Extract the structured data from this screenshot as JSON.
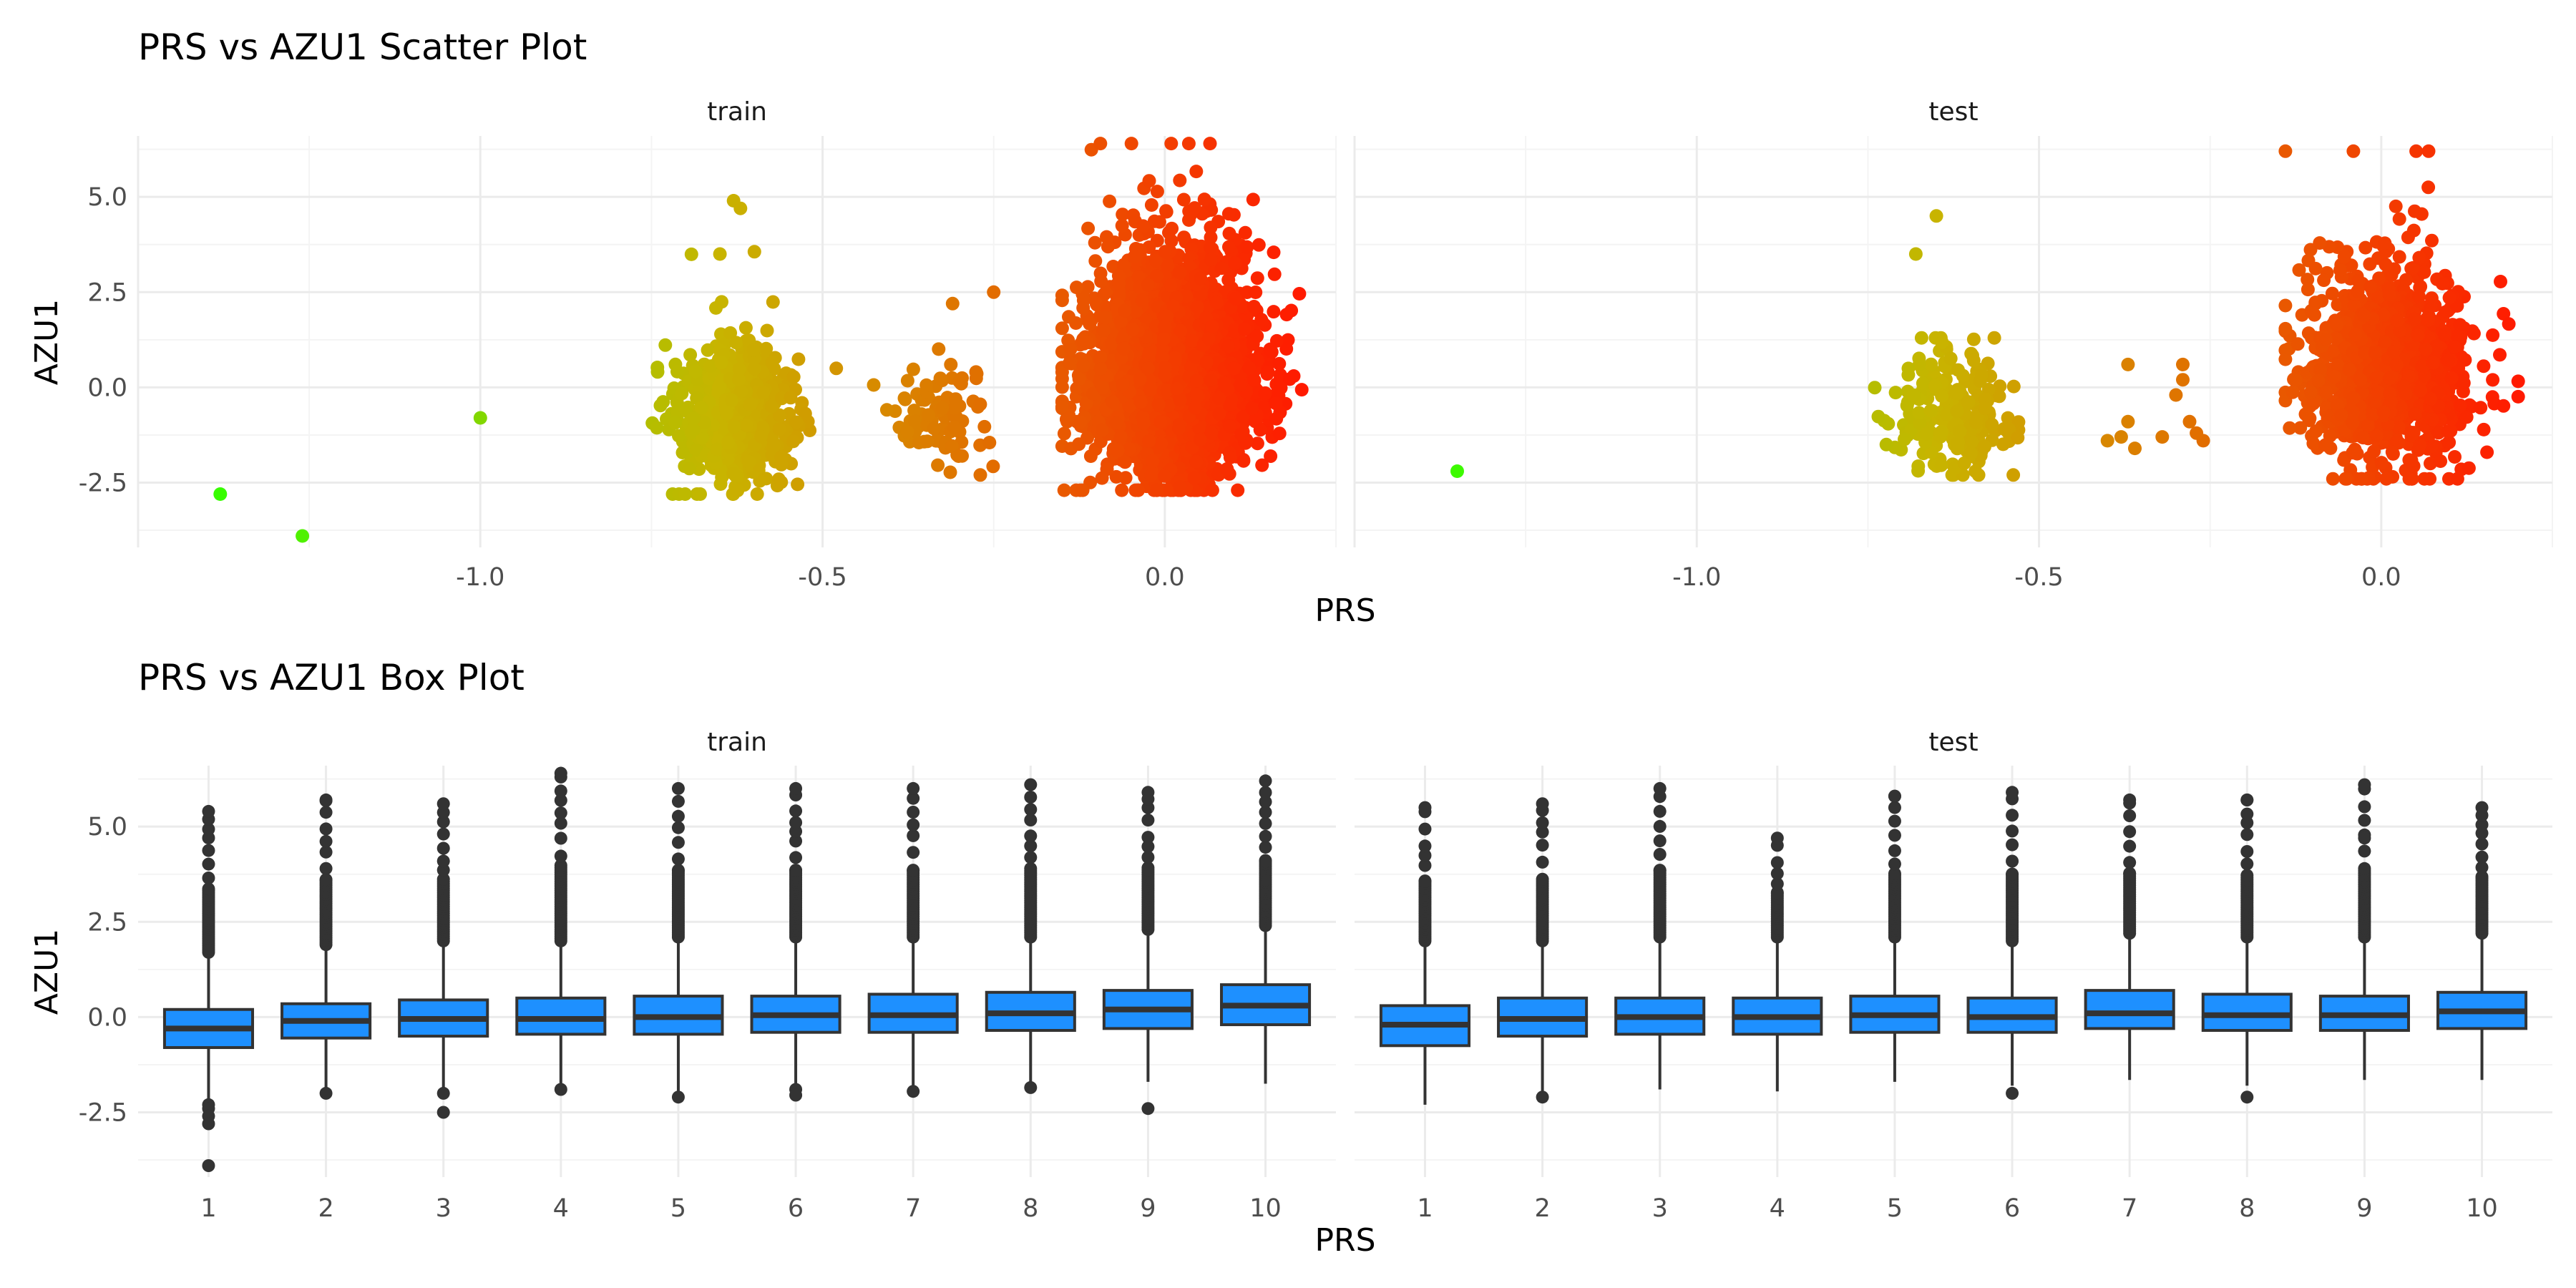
{
  "colors": {
    "background": "#ffffff",
    "grid_major": "#ebebeb",
    "grid_minor": "#f4f4f4",
    "box_fill": "#1E90FF",
    "box_line": "#333333",
    "point_low": "#33FF00",
    "point_mid": "#C8B400",
    "point_high": "#FF1A00"
  },
  "chart_data": [
    {
      "type": "scatter",
      "title": "PRS vs AZU1 Scatter Plot",
      "xlabel": "PRS",
      "ylabel": "AZU1",
      "xlim": [
        -1.5,
        0.25
      ],
      "ylim": [
        -4.2,
        6.6
      ],
      "xticks": [
        -1.0,
        -0.5,
        0.0
      ],
      "xtick_labels": [
        "-1.0",
        "-0.5",
        "0.0"
      ],
      "yticks": [
        -2.5,
        0.0,
        2.5,
        5.0
      ],
      "ytick_labels": [
        "-2.5",
        "0.0",
        "2.5",
        "5.0"
      ],
      "color_scale": "gradient by PRS: green (low) → yellow-olive → orange → red (high)",
      "legend": "none",
      "grid": true,
      "panels": [
        {
          "name": "train",
          "clusters": [
            {
              "x_center": 0.01,
              "y_center": 0.3,
              "x_spread": 0.06,
              "y_spread": 1.0,
              "x_range": [
                -0.15,
                0.2
              ],
              "y_range": [
                -2.7,
                6.4
              ],
              "approx_points": 3200
            },
            {
              "x_center": -0.63,
              "y_center": -0.8,
              "x_spread": 0.04,
              "y_spread": 0.7,
              "x_range": [
                -0.78,
                -0.5
              ],
              "y_range": [
                -2.8,
                5.0
              ],
              "approx_points": 700
            },
            {
              "x_center": -0.33,
              "y_center": -0.8,
              "x_spread": 0.04,
              "y_spread": 0.6,
              "x_range": [
                -0.44,
                -0.22
              ],
              "y_range": [
                -2.3,
                2.5
              ],
              "approx_points": 90
            }
          ],
          "outliers": [
            {
              "x": -1.38,
              "y": -2.8
            },
            {
              "x": -1.26,
              "y": -3.9
            },
            {
              "x": -1.0,
              "y": -0.8
            },
            {
              "x": -0.48,
              "y": 0.5
            },
            {
              "x": -0.25,
              "y": 2.5
            },
            {
              "x": -0.31,
              "y": 2.2
            },
            {
              "x": -0.12,
              "y": -2.7
            },
            {
              "x": -0.63,
              "y": 4.9
            },
            {
              "x": -0.62,
              "y": 4.7
            },
            {
              "x": -0.65,
              "y": 3.5
            }
          ]
        },
        {
          "name": "test",
          "clusters": [
            {
              "x_center": 0.01,
              "y_center": 0.3,
              "x_spread": 0.06,
              "y_spread": 1.0,
              "x_range": [
                -0.14,
                0.2
              ],
              "y_range": [
                -2.4,
                6.2
              ],
              "approx_points": 1100
            },
            {
              "x_center": -0.63,
              "y_center": -0.8,
              "x_spread": 0.04,
              "y_spread": 0.6,
              "x_range": [
                -0.74,
                -0.53
              ],
              "y_range": [
                -2.3,
                1.3
              ],
              "approx_points": 230
            }
          ],
          "outliers": [
            {
              "x": -1.35,
              "y": -2.2
            },
            {
              "x": -0.65,
              "y": 4.5
            },
            {
              "x": -0.68,
              "y": 3.5
            },
            {
              "x": -0.37,
              "y": 0.6
            },
            {
              "x": -0.29,
              "y": 0.6
            },
            {
              "x": -0.29,
              "y": 0.2
            },
            {
              "x": -0.3,
              "y": -0.2
            },
            {
              "x": -0.38,
              "y": -1.3
            },
            {
              "x": -0.36,
              "y": -1.6
            },
            {
              "x": -0.4,
              "y": -1.4
            },
            {
              "x": -0.32,
              "y": -1.3
            },
            {
              "x": -0.26,
              "y": -1.4
            },
            {
              "x": -0.28,
              "y": -0.9
            },
            {
              "x": -0.27,
              "y": -1.2
            },
            {
              "x": -0.37,
              "y": -0.9
            }
          ]
        }
      ]
    },
    {
      "type": "box",
      "title": "PRS vs AZU1 Box Plot",
      "xlabel": "PRS",
      "ylabel": "AZU1",
      "ylim": [
        -4.2,
        6.6
      ],
      "yticks": [
        -2.5,
        0.0,
        2.5,
        5.0
      ],
      "ytick_labels": [
        "-2.5",
        "0.0",
        "2.5",
        "5.0"
      ],
      "categories": [
        "1",
        "2",
        "3",
        "4",
        "5",
        "6",
        "7",
        "8",
        "9",
        "10"
      ],
      "legend": "none",
      "grid": true,
      "panels": [
        {
          "name": "train",
          "boxes": [
            {
              "q1": -0.8,
              "median": -0.3,
              "q3": 0.2,
              "lower": -2.2,
              "upper": 1.6,
              "outlier_high": [
                1.7,
                5.4
              ],
              "outlier_low": [
                -2.3,
                -2.4,
                -2.6,
                -2.8,
                -3.9
              ]
            },
            {
              "q1": -0.55,
              "median": -0.1,
              "q3": 0.35,
              "lower": -1.9,
              "upper": 1.75,
              "outlier_high": [
                1.9,
                5.7
              ],
              "outlier_low": [
                -2.0
              ]
            },
            {
              "q1": -0.5,
              "median": -0.05,
              "q3": 0.45,
              "lower": -1.9,
              "upper": 1.85,
              "outlier_high": [
                2.0,
                5.6
              ],
              "outlier_low": [
                -2.0,
                -2.5
              ]
            },
            {
              "q1": -0.45,
              "median": -0.05,
              "q3": 0.5,
              "lower": -1.85,
              "upper": 1.9,
              "outlier_high": [
                2.0,
                6.4
              ],
              "outlier_low": [
                -1.9
              ]
            },
            {
              "q1": -0.45,
              "median": 0.0,
              "q3": 0.55,
              "lower": -1.95,
              "upper": 2.0,
              "outlier_high": [
                2.1,
                6.0
              ],
              "outlier_low": [
                -2.1
              ]
            },
            {
              "q1": -0.4,
              "median": 0.05,
              "q3": 0.55,
              "lower": -1.8,
              "upper": 2.0,
              "outlier_high": [
                2.1,
                6.0
              ],
              "outlier_low": [
                -1.9,
                -2.05
              ]
            },
            {
              "q1": -0.4,
              "median": 0.05,
              "q3": 0.6,
              "lower": -1.85,
              "upper": 2.0,
              "outlier_high": [
                2.1,
                6.0
              ],
              "outlier_low": [
                -1.95
              ]
            },
            {
              "q1": -0.35,
              "median": 0.1,
              "q3": 0.65,
              "lower": -1.8,
              "upper": 2.05,
              "outlier_high": [
                2.1,
                6.1
              ],
              "outlier_low": [
                -1.85
              ]
            },
            {
              "q1": -0.3,
              "median": 0.2,
              "q3": 0.7,
              "lower": -1.7,
              "upper": 2.2,
              "outlier_high": [
                2.3,
                5.9
              ],
              "outlier_low": [
                -2.4
              ]
            },
            {
              "q1": -0.2,
              "median": 0.3,
              "q3": 0.85,
              "lower": -1.75,
              "upper": 2.3,
              "outlier_high": [
                2.4,
                6.2
              ],
              "outlier_low": []
            }
          ]
        },
        {
          "name": "test",
          "boxes": [
            {
              "q1": -0.75,
              "median": -0.2,
              "q3": 0.3,
              "lower": -2.3,
              "upper": 1.9,
              "outlier_high": [
                2.0,
                5.5
              ],
              "outlier_low": []
            },
            {
              "q1": -0.5,
              "median": -0.05,
              "q3": 0.5,
              "lower": -1.95,
              "upper": 1.9,
              "outlier_high": [
                2.0,
                5.6
              ],
              "outlier_low": [
                -2.1
              ]
            },
            {
              "q1": -0.45,
              "median": 0.0,
              "q3": 0.5,
              "lower": -1.9,
              "upper": 1.95,
              "outlier_high": [
                2.1,
                6.0
              ],
              "outlier_low": []
            },
            {
              "q1": -0.45,
              "median": 0.0,
              "q3": 0.5,
              "lower": -1.95,
              "upper": 1.95,
              "outlier_high": [
                2.1,
                4.7
              ],
              "outlier_low": []
            },
            {
              "q1": -0.4,
              "median": 0.05,
              "q3": 0.55,
              "lower": -1.7,
              "upper": 1.95,
              "outlier_high": [
                2.1,
                5.8
              ],
              "outlier_low": []
            },
            {
              "q1": -0.4,
              "median": 0.0,
              "q3": 0.5,
              "lower": -1.8,
              "upper": 1.9,
              "outlier_high": [
                2.0,
                5.9
              ],
              "outlier_low": [
                -2.0
              ]
            },
            {
              "q1": -0.3,
              "median": 0.1,
              "q3": 0.7,
              "lower": -1.65,
              "upper": 2.1,
              "outlier_high": [
                2.2,
                5.7
              ],
              "outlier_low": []
            },
            {
              "q1": -0.35,
              "median": 0.05,
              "q3": 0.6,
              "lower": -1.8,
              "upper": 2.0,
              "outlier_high": [
                2.1,
                5.7
              ],
              "outlier_low": [
                -2.1
              ]
            },
            {
              "q1": -0.35,
              "median": 0.05,
              "q3": 0.55,
              "lower": -1.65,
              "upper": 2.0,
              "outlier_high": [
                2.1,
                4.7,
                6.1
              ],
              "outlier_low": []
            },
            {
              "q1": -0.3,
              "median": 0.15,
              "q3": 0.65,
              "lower": -1.65,
              "upper": 2.05,
              "outlier_high": [
                2.2,
                5.5
              ],
              "outlier_low": []
            }
          ]
        }
      ]
    }
  ]
}
